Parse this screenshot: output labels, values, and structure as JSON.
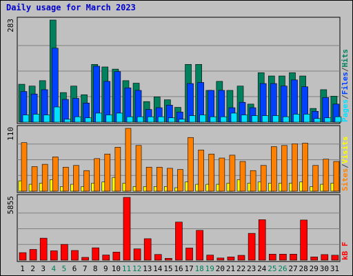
{
  "chart_data": {
    "type": "bar",
    "title": "Daily usage for March 2023",
    "days": [
      "1",
      "2",
      "3",
      "4",
      "5",
      "6",
      "7",
      "8",
      "9",
      "10",
      "11",
      "12",
      "13",
      "14",
      "15",
      "16",
      "17",
      "18",
      "19",
      "20",
      "21",
      "22",
      "23",
      "24",
      "25",
      "26",
      "27",
      "28",
      "29",
      "30",
      "31"
    ],
    "weekend_days": [
      "4",
      "5",
      "11",
      "12",
      "18",
      "19",
      "25",
      "26"
    ],
    "panels": [
      {
        "id": "hits_files_pages",
        "ymax": 283,
        "ymax_label": "283",
        "legend": [
          {
            "name": "Pages",
            "color": "#00e0ff"
          },
          {
            "name": "/",
            "color": "#404040"
          },
          {
            "name": "Files",
            "color": "#0040ff"
          },
          {
            "name": "/",
            "color": "#404040"
          },
          {
            "name": "Hits",
            "color": "#00805c"
          }
        ],
        "series": [
          {
            "name": "Hits",
            "color": "#00805c",
            "values": [
              105,
              100,
              115,
              283,
              82,
              100,
              76,
              160,
              153,
              147,
              115,
              108,
              57,
              70,
              62,
              41,
              160,
              160,
              88,
              113,
              88,
              100,
              50,
              137,
              128,
              128,
              137,
              128,
              38,
              90,
              72
            ]
          },
          {
            "name": "Files",
            "color": "#0040ff",
            "values": [
              85,
              78,
              90,
              205,
              63,
              66,
              53,
              155,
              113,
              140,
              95,
              88,
              35,
              40,
              47,
              28,
              107,
              110,
              88,
              88,
              40,
              55,
              40,
              107,
              107,
              100,
              117,
              98,
              30,
              68,
              50
            ]
          },
          {
            "name": "Pages",
            "color": "#00e0ff",
            "values": [
              20,
              22,
              20,
              42,
              8,
              15,
              12,
              25,
              20,
              25,
              15,
              15,
              15,
              15,
              12,
              8,
              18,
              20,
              15,
              15,
              25,
              20,
              18,
              18,
              18,
              15,
              22,
              22,
              10,
              12,
              15
            ]
          }
        ]
      },
      {
        "id": "visits_sites",
        "ymax": 110,
        "ymax_label": "110",
        "legend": [
          {
            "name": "Sites",
            "color": "#ff8000"
          },
          {
            "name": "/",
            "color": "#404040"
          },
          {
            "name": "Visits",
            "color": "#ffff00"
          }
        ],
        "series": [
          {
            "name": "Visits",
            "color": "#ffff00",
            "values": [
              18,
              12,
              14,
              20,
              8,
              12,
              8,
              14,
              16,
              24,
              14,
              8,
              8,
              8,
              8,
              6,
              16,
              12,
              12,
              12,
              14,
              20,
              14,
              16,
              14,
              14,
              14,
              16,
              8,
              12,
              14
            ]
          },
          {
            "name": "Sites",
            "color": "#ff8000",
            "values": [
              85,
              43,
              47,
              60,
              42,
              45,
              36,
              57,
              65,
              77,
              110,
              80,
              42,
              42,
              40,
              38,
              94,
              72,
              65,
              58,
              63,
              52,
              36,
              45,
              78,
              80,
              83,
              84,
              45,
              56,
              52
            ]
          }
        ]
      },
      {
        "id": "kbytes",
        "ymax": 5855,
        "ymax_label": "5855",
        "legend": [
          {
            "name": "kB F",
            "color": "#ff0000"
          }
        ],
        "series": [
          {
            "name": "kB F",
            "color": "#ff0000",
            "values": [
              700,
              1000,
              2050,
              870,
              1470,
              900,
              260,
              1150,
              480,
              750,
              5855,
              1050,
              2000,
              530,
              170,
              3550,
              1130,
              2780,
              470,
              200,
              300,
              450,
              2500,
              3770,
              560,
              560,
              560,
              3740,
              300,
              520,
              460
            ]
          }
        ]
      }
    ]
  }
}
